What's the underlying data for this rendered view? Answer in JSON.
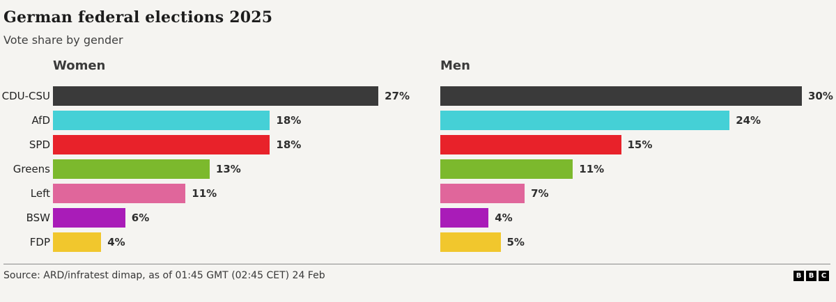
{
  "header": {
    "title": "German federal elections 2025",
    "subtitle": "Vote share by gender"
  },
  "chart_data": {
    "type": "bar",
    "orientation": "horizontal",
    "title": "German federal elections 2025",
    "subtitle": "Vote share by gender",
    "categories": [
      "CDU-CSU",
      "AfD",
      "SPD",
      "Greens",
      "Left",
      "BSW",
      "FDP"
    ],
    "series": [
      {
        "name": "Women",
        "values": [
          27,
          18,
          18,
          13,
          11,
          6,
          4
        ]
      },
      {
        "name": "Men",
        "values": [
          30,
          24,
          15,
          11,
          7,
          4,
          5
        ]
      }
    ],
    "value_suffix": "%",
    "xlim": [
      0,
      30
    ],
    "grid": false,
    "legend": "panel-headers",
    "colors": {
      "CDU-CSU": "#3a3a3a",
      "AfD": "#45d0d6",
      "SPD": "#e8222a",
      "Greens": "#7cb92d",
      "Left": "#e0669b",
      "BSW": "#a91cb8",
      "FDP": "#f1c72d"
    },
    "background": "#f5f4f1"
  },
  "footer": {
    "source": "Source: ARD/infratest dimap, as of 01:45 GMT (02:45 CET) 24 Feb"
  },
  "logo": [
    "B",
    "B",
    "C"
  ]
}
